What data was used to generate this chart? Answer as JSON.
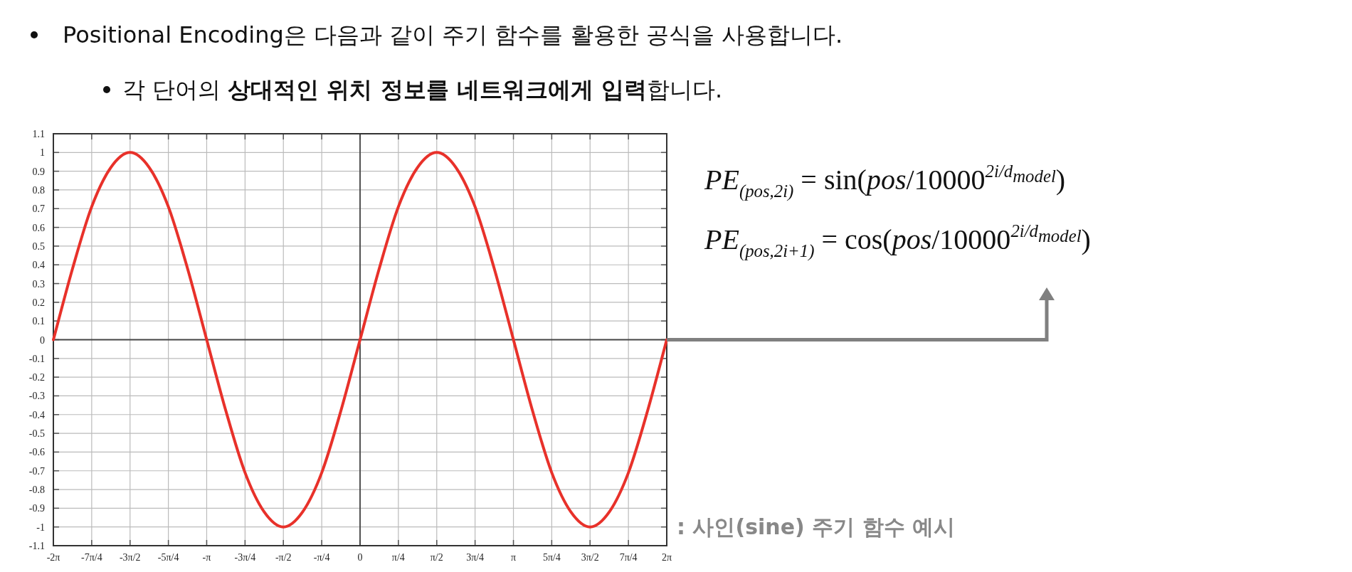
{
  "chart_data": {
    "type": "line",
    "title": "Positional Encoding은 다음과 같이 주기 함수를 활용한 공식을 사용합니다.",
    "subtitle": "각 단어의 **상대적인 위치 정보를 네트워크에게 입력**합니다.",
    "annotations": [
      "*PE*$_{(pos,2i)}$ = sin(*pos*/10000$^{2i/d}$$_{model}$)",
      "*PE*$_{(pos,2i+1)}$ = cos(*pos*/10000$^{2i/d}$$_{model}$)",
      ": 사인(sine) 주기 함수 예시"
    ],
    "xlim": [
      -6.283,
      6.283
    ],
    "xticks": [
      {
        "value": -6.283,
        "label": "-2π"
      },
      {
        "value": -5.498,
        "label": "-7π/4"
      },
      {
        "value": -4.712,
        "label": "-3π/2"
      },
      {
        "value": -3.927,
        "label": "-5π/4"
      },
      {
        "value": -3.142,
        "label": "-π"
      },
      {
        "value": -2.356,
        "label": "-3π/4"
      },
      {
        "value": -1.571,
        "label": "-π/2"
      },
      {
        "value": -0.785,
        "label": "-π/4"
      },
      {
        "value": 0,
        "label": "0"
      },
      {
        "value": 0.785,
        "label": "π/4"
      },
      {
        "value": 1.571,
        "label": "π/2"
      },
      {
        "value": 2.356,
        "label": "3π/4"
      },
      {
        "value": 3.142,
        "label": "π"
      },
      {
        "value": 3.927,
        "label": "5π/4"
      },
      {
        "value": 4.712,
        "label": "3π/2"
      },
      {
        "value": 5.498,
        "label": "7π/4"
      },
      {
        "value": 6.283,
        "label": "2π"
      }
    ],
    "ylim": [
      -1.1,
      1.1
    ],
    "yticks": [
      1.1,
      1,
      0.9,
      0.8,
      0.7,
      0.6,
      0.5,
      0.4,
      0.3,
      0.2,
      0.1,
      0,
      -0.1,
      -0.2,
      -0.3,
      -0.4,
      -0.5,
      -0.6,
      -0.7,
      -0.8,
      -0.9,
      -1,
      -1.1
    ],
    "grid": true,
    "x": [
      -6.283,
      -5.89,
      -5.498,
      -5.105,
      -4.712,
      -4.32,
      -3.927,
      -3.534,
      -3.142,
      -2.749,
      -2.356,
      -1.963,
      -1.571,
      -1.178,
      -0.785,
      -0.393,
      0,
      0.393,
      0.785,
      1.178,
      1.571,
      1.963,
      2.356,
      2.749,
      3.142,
      3.534,
      3.927,
      4.32,
      4.712,
      5.105,
      5.498,
      5.89,
      6.283
    ],
    "series": [
      {
        "color": "#e8312a",
        "values": [
          0,
          0.38,
          0.71,
          0.92,
          1,
          0.92,
          0.71,
          0.38,
          0,
          -0.38,
          -0.71,
          -0.92,
          -1,
          -0.92,
          -0.71,
          -0.38,
          0,
          0.38,
          0.71,
          0.92,
          1,
          0.92,
          0.71,
          0.38,
          0,
          -0.38,
          -0.71,
          -0.92,
          -1,
          -0.92,
          -0.71,
          -0.38,
          0
        ]
      }
    ]
  }
}
